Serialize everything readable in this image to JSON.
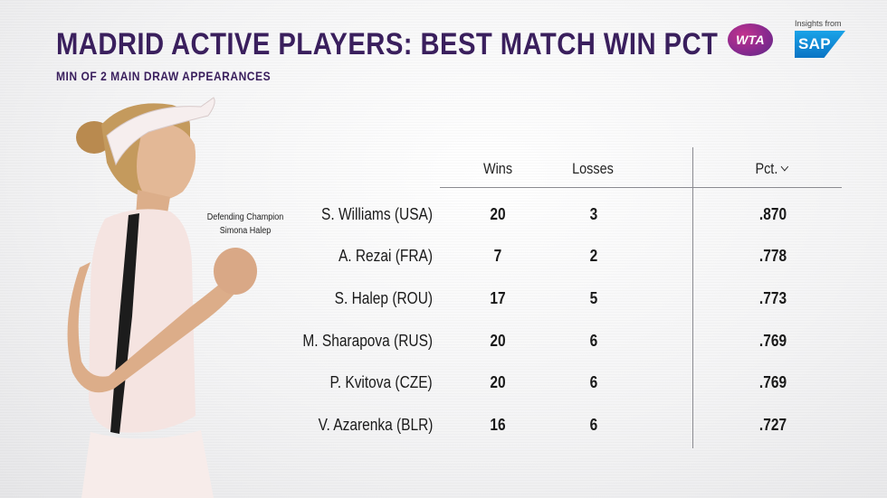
{
  "header": {
    "title": "MADRID ACTIVE PLAYERS: BEST MATCH WIN PCT",
    "subtitle": "MIN OF 2 MAIN DRAW APPEARANCES"
  },
  "branding": {
    "wta_logo_text": "WTA",
    "insights_label": "Insights from",
    "sap_logo_text": "SAP"
  },
  "caption": {
    "line1": "Defending Champion",
    "line2": "Simona Halep"
  },
  "table": {
    "columns": {
      "wins": "Wins",
      "losses": "Losses",
      "pct": "Pct."
    },
    "sort_icon": "chevron-down-icon",
    "rows": [
      {
        "player": "S. Williams (USA)",
        "wins": "20",
        "losses": "3",
        "pct": ".870"
      },
      {
        "player": "A. Rezai (FRA)",
        "wins": "7",
        "losses": "2",
        "pct": ".778"
      },
      {
        "player": "S. Halep (ROU)",
        "wins": "17",
        "losses": "5",
        "pct": ".773"
      },
      {
        "player": "M. Sharapova (RUS)",
        "wins": "20",
        "losses": "6",
        "pct": ".769"
      },
      {
        "player": "P. Kvitova (CZE)",
        "wins": "20",
        "losses": "6",
        "pct": ".769"
      },
      {
        "player": "V. Azarenka (BLR)",
        "wins": "16",
        "losses": "6",
        "pct": ".727"
      }
    ]
  },
  "colors": {
    "title": "#3a1f5d",
    "wta_logo": "#8a2a8f",
    "sap_logo": "#0a74c4"
  }
}
